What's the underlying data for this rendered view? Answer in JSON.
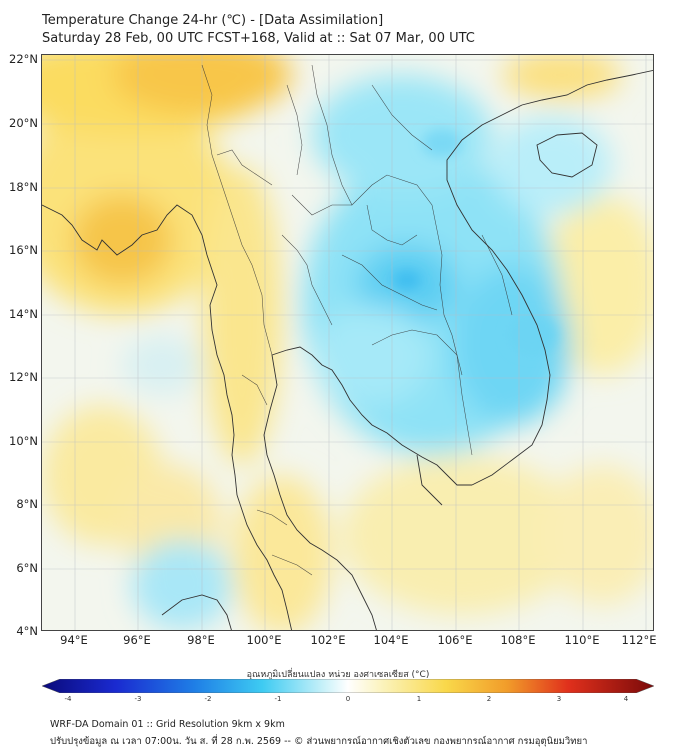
{
  "title": {
    "line1": "Temperature Change 24-hr (℃) - [Data Assimilation]",
    "line2": "Saturday 28 Feb, 00 UTC FCST+168, Valid at :: Sat 07 Mar, 00 UTC"
  },
  "map": {
    "lat_labels": [
      "22°N",
      "20°N",
      "18°N",
      "16°N",
      "14°N",
      "12°N",
      "10°N",
      "8°N",
      "6°N",
      "4°N"
    ],
    "lon_labels": [
      "94°E",
      "96°E",
      "98°E",
      "100°E",
      "102°E",
      "104°E",
      "106°E",
      "108°E",
      "110°E",
      "112°E"
    ],
    "lat_range": [
      4,
      22
    ],
    "lon_range": [
      93,
      112.3
    ]
  },
  "colorbar": {
    "label": "อุณหภูมิเปลี่ยนแปลง หน่วย องศาเซลเซียส (°C)",
    "ticks": [
      "-4",
      "-3",
      "-2",
      "-1",
      "0",
      "1",
      "2",
      "3",
      "4"
    ],
    "range": [
      -4,
      4
    ]
  },
  "footer": {
    "line1": "WRF-DA Domain 01 :: Grid Resolution 9km x 9km",
    "line2": "ปรับปรุงข้อมูล ณ เวลา 07:00น. วัน ส. ที่ 28 ก.พ. 2569 -- © ส่วนพยากรณ์อากาศเชิงตัวเลข กองพยากรณ์อากาศ กรมอุตุนิยมวิทยา"
  }
}
